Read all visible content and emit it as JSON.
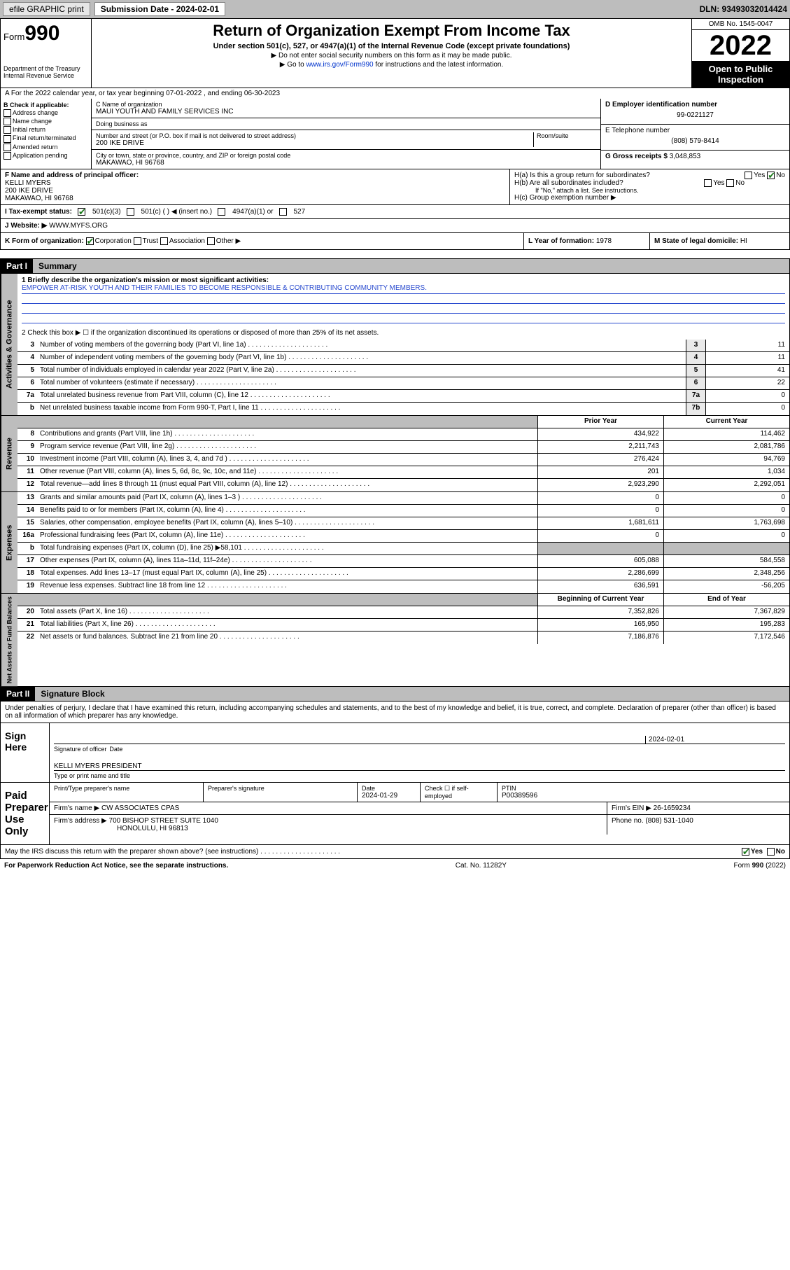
{
  "colors": {
    "topbar_bg": "#bdbdbd",
    "black": "#000000",
    "link": "#0033cc",
    "check_green": "#1a7a1a",
    "mission_line": "#2a4bcf",
    "gray_box": "#e9e9e9"
  },
  "topbar": {
    "efile": "efile GRAPHIC print",
    "sub_label": "Submission Date - 2024-02-01",
    "dln": "DLN: 93493032014424"
  },
  "header": {
    "form_prefix": "Form",
    "form_num": "990",
    "dept": "Department of the Treasury Internal Revenue Service",
    "title": "Return of Organization Exempt From Income Tax",
    "sub1": "Under section 501(c), 527, or 4947(a)(1) of the Internal Revenue Code (except private foundations)",
    "sub2": "▶ Do not enter social security numbers on this form as it may be made public.",
    "sub3_pre": "▶ Go to ",
    "sub3_link": "www.irs.gov/Form990",
    "sub3_post": " for instructions and the latest information.",
    "omb": "OMB No. 1545-0047",
    "year": "2022",
    "otp": "Open to Public Inspection"
  },
  "period": {
    "line": "A For the 2022 calendar year, or tax year beginning 07-01-2022   , and ending 06-30-2023"
  },
  "box_b": {
    "title": "B Check if applicable:",
    "items": [
      "Address change",
      "Name change",
      "Initial return",
      "Final return/terminated",
      "Amended return",
      "Application pending"
    ]
  },
  "box_c": {
    "name_label": "C Name of organization",
    "name": "MAUI YOUTH AND FAMILY SERVICES INC",
    "dba_label": "Doing business as",
    "dba": "",
    "addr_label": "Number and street (or P.O. box if mail is not delivered to street address)",
    "room_label": "Room/suite",
    "addr": "200 IKE DRIVE",
    "city_label": "City or town, state or province, country, and ZIP or foreign postal code",
    "city": "MAKAWAO, HI  96768"
  },
  "box_d": {
    "ein_label": "D Employer identification number",
    "ein": "99-0221127",
    "phone_label": "E Telephone number",
    "phone": "(808) 579-8414",
    "gross_label": "G Gross receipts $",
    "gross": "3,048,853"
  },
  "box_f": {
    "label": "F Name and address of principal officer:",
    "name": "KELLI MYERS",
    "addr1": "200 IKE DRIVE",
    "addr2": "MAKAWAO, HI  96768"
  },
  "box_h": {
    "a_label": "H(a) Is this a group return for subordinates?",
    "a_yes": "Yes",
    "a_no": "No",
    "b_label": "H(b) Are all subordinates included?",
    "b_note": "If \"No,\" attach a list. See instructions.",
    "c_label": "H(c) Group exemption number ▶"
  },
  "tax_status": {
    "label": "I   Tax-exempt status:",
    "opt1": "501(c)(3)",
    "opt2": "501(c) (  ) ◀ (insert no.)",
    "opt3": "4947(a)(1) or",
    "opt4": "527"
  },
  "website": {
    "label": "J   Website: ▶",
    "value": "WWW.MYFS.ORG"
  },
  "row_k": {
    "form_label": "K Form of organization:",
    "corp": "Corporation",
    "trust": "Trust",
    "assoc": "Association",
    "other": "Other ▶",
    "year_label": "L Year of formation:",
    "year": "1978",
    "state_label": "M State of legal domicile:",
    "state": "HI"
  },
  "part1": {
    "hdr": "Part I",
    "title": "Summary",
    "l1_label": "1  Briefly describe the organization's mission or most significant activities:",
    "mission": "EMPOWER AT-RISK YOUTH AND THEIR FAMILIES TO BECOME RESPONSIBLE & CONTRIBUTING COMMUNITY MEMBERS.",
    "l2": "2   Check this box ▶ ☐  if the organization discontinued its operations or disposed of more than 25% of its net assets."
  },
  "side_labels": {
    "gov": "Activities & Governance",
    "rev": "Revenue",
    "exp": "Expenses",
    "net": "Net Assets or Fund Balances"
  },
  "gov_rows": [
    {
      "n": "3",
      "d": "Number of voting members of the governing body (Part VI, line 1a)",
      "box": "3",
      "v": "11"
    },
    {
      "n": "4",
      "d": "Number of independent voting members of the governing body (Part VI, line 1b)",
      "box": "4",
      "v": "11"
    },
    {
      "n": "5",
      "d": "Total number of individuals employed in calendar year 2022 (Part V, line 2a)",
      "box": "5",
      "v": "41"
    },
    {
      "n": "6",
      "d": "Total number of volunteers (estimate if necessary)",
      "box": "6",
      "v": "22"
    },
    {
      "n": "7a",
      "d": "Total unrelated business revenue from Part VIII, column (C), line 12",
      "box": "7a",
      "v": "0"
    },
    {
      "n": "b",
      "d": "Net unrelated business taxable income from Form 990-T, Part I, line 11",
      "box": "7b",
      "v": "0"
    }
  ],
  "two_col_hdr": {
    "prior": "Prior Year",
    "curr": "Current Year"
  },
  "rev_rows": [
    {
      "n": "8",
      "d": "Contributions and grants (Part VIII, line 1h)",
      "p": "434,922",
      "c": "114,462"
    },
    {
      "n": "9",
      "d": "Program service revenue (Part VIII, line 2g)",
      "p": "2,211,743",
      "c": "2,081,786"
    },
    {
      "n": "10",
      "d": "Investment income (Part VIII, column (A), lines 3, 4, and 7d )",
      "p": "276,424",
      "c": "94,769"
    },
    {
      "n": "11",
      "d": "Other revenue (Part VIII, column (A), lines 5, 6d, 8c, 9c, 10c, and 11e)",
      "p": "201",
      "c": "1,034"
    },
    {
      "n": "12",
      "d": "Total revenue—add lines 8 through 11 (must equal Part VIII, column (A), line 12)",
      "p": "2,923,290",
      "c": "2,292,051"
    }
  ],
  "exp_rows": [
    {
      "n": "13",
      "d": "Grants and similar amounts paid (Part IX, column (A), lines 1–3 )",
      "p": "0",
      "c": "0"
    },
    {
      "n": "14",
      "d": "Benefits paid to or for members (Part IX, column (A), line 4)",
      "p": "0",
      "c": "0"
    },
    {
      "n": "15",
      "d": "Salaries, other compensation, employee benefits (Part IX, column (A), lines 5–10)",
      "p": "1,681,611",
      "c": "1,763,698"
    },
    {
      "n": "16a",
      "d": "Professional fundraising fees (Part IX, column (A), line 11e)",
      "p": "0",
      "c": "0"
    },
    {
      "n": "b",
      "d": "Total fundraising expenses (Part IX, column (D), line 25) ▶58,101",
      "p": "",
      "c": "",
      "gray": true
    },
    {
      "n": "17",
      "d": "Other expenses (Part IX, column (A), lines 11a–11d, 11f–24e)",
      "p": "605,088",
      "c": "584,558"
    },
    {
      "n": "18",
      "d": "Total expenses. Add lines 13–17 (must equal Part IX, column (A), line 25)",
      "p": "2,286,699",
      "c": "2,348,256"
    },
    {
      "n": "19",
      "d": "Revenue less expenses. Subtract line 18 from line 12",
      "p": "636,591",
      "c": "-56,205"
    }
  ],
  "net_hdr": {
    "beg": "Beginning of Current Year",
    "end": "End of Year"
  },
  "net_rows": [
    {
      "n": "20",
      "d": "Total assets (Part X, line 16)",
      "p": "7,352,826",
      "c": "7,367,829"
    },
    {
      "n": "21",
      "d": "Total liabilities (Part X, line 26)",
      "p": "165,950",
      "c": "195,283"
    },
    {
      "n": "22",
      "d": "Net assets or fund balances. Subtract line 21 from line 20",
      "p": "7,186,876",
      "c": "7,172,546"
    }
  ],
  "part2": {
    "hdr": "Part II",
    "title": "Signature Block"
  },
  "decl": "Under penalties of perjury, I declare that I have examined this return, including accompanying schedules and statements, and to the best of my knowledge and belief, it is true, correct, and complete. Declaration of preparer (other than officer) is based on all information of which preparer has any knowledge.",
  "sign": {
    "left": "Sign Here",
    "sig_label": "Signature of officer",
    "date_label": "Date",
    "date": "2024-02-01",
    "name": "KELLI MYERS PRESIDENT",
    "name_label": "Type or print name and title"
  },
  "prep": {
    "left": "Paid Preparer Use Only",
    "h1": "Print/Type preparer's name",
    "h2": "Preparer's signature",
    "h3": "Date",
    "h3v": "2024-01-29",
    "h4": "Check ☐ if self-employed",
    "h5l": "PTIN",
    "h5v": "P00389596",
    "firm_l": "Firm's name   ▶",
    "firm_v": "CW ASSOCIATES CPAS",
    "ein_l": "Firm's EIN ▶",
    "ein_v": "26-1659234",
    "addr_l": "Firm's address ▶",
    "addr_v": "700 BISHOP STREET SUITE 1040",
    "addr_v2": "HONOLULU, HI  96813",
    "phone_l": "Phone no.",
    "phone_v": "(808) 531-1040"
  },
  "discuss": {
    "q": "May the IRS discuss this return with the preparer shown above? (see instructions)",
    "yes": "Yes",
    "no": "No"
  },
  "footer": {
    "left": "For Paperwork Reduction Act Notice, see the separate instructions.",
    "mid": "Cat. No. 11282Y",
    "right": "Form 990 (2022)"
  }
}
